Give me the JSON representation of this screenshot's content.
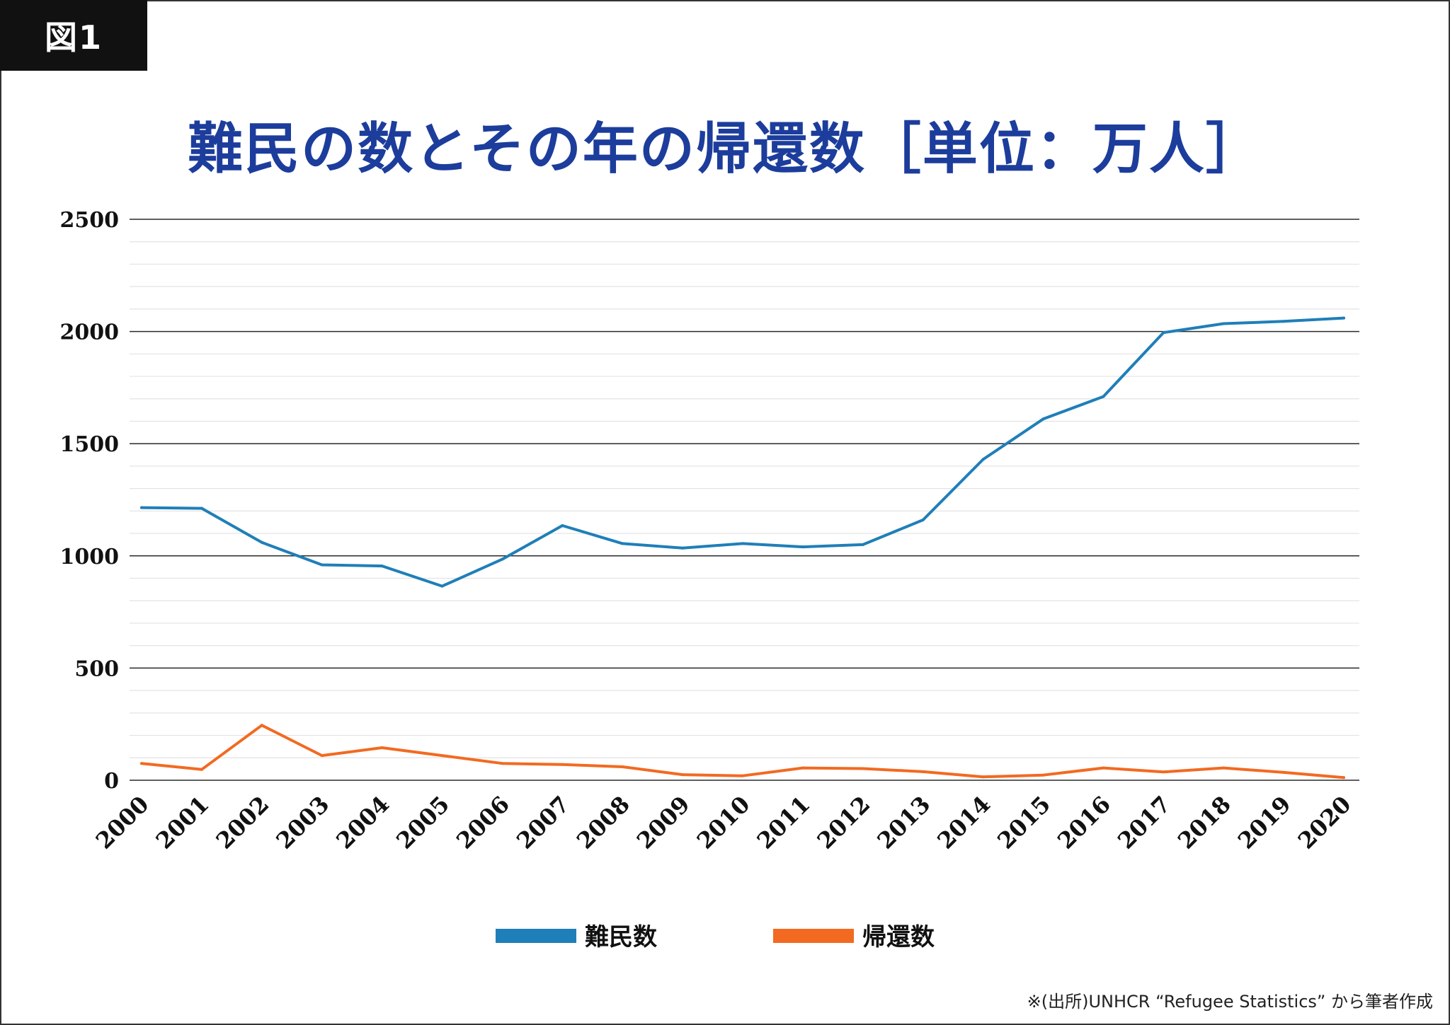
{
  "badge": "図1",
  "title": "難民の数とその年の帰還数［単位：万人］",
  "source_note": "※(出所)UNHCR “Refugee Statistics” から筆者作成",
  "chart_data": {
    "type": "line",
    "title": "難民の数とその年の帰還数［単位：万人］",
    "xlabel": "",
    "ylabel": "",
    "ylim": [
      0,
      2500
    ],
    "yticks": [
      "0",
      "500",
      "1000",
      "1500",
      "2000",
      "2500"
    ],
    "grid": "on",
    "legend_position": "bottom",
    "categories": [
      "2000",
      "2001",
      "2002",
      "2003",
      "2004",
      "2005",
      "2006",
      "2007",
      "2008",
      "2009",
      "2010",
      "2011",
      "2012",
      "2013",
      "2014",
      "2015",
      "2016",
      "2017",
      "2018",
      "2019",
      "2020"
    ],
    "series": [
      {
        "name": "難民数",
        "color": "#1f7fb8",
        "values": [
          1215,
          1212,
          1060,
          960,
          955,
          865,
          985,
          1135,
          1055,
          1035,
          1055,
          1040,
          1050,
          1160,
          1430,
          1610,
          1710,
          1995,
          2035,
          2045,
          2060
        ]
      },
      {
        "name": "帰還数",
        "color": "#f26a21",
        "values": [
          75,
          48,
          245,
          110,
          145,
          110,
          75,
          70,
          60,
          25,
          20,
          55,
          52,
          38,
          15,
          23,
          55,
          37,
          55,
          35,
          12
        ]
      }
    ]
  }
}
